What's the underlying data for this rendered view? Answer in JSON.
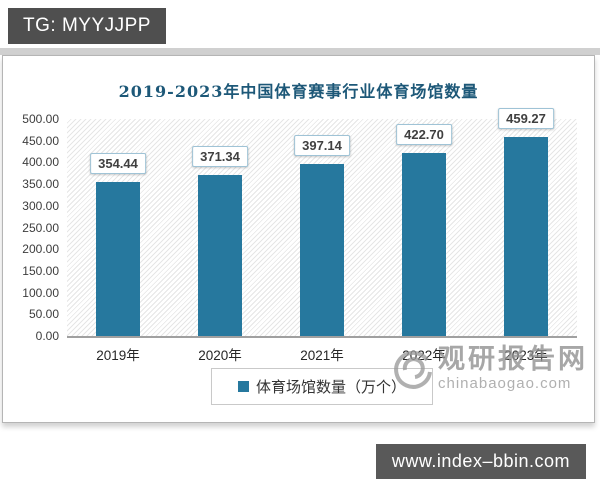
{
  "tg_badge": {
    "label": "TG: MYYJJPP"
  },
  "site_badge": {
    "label": "www.index–bbin.com"
  },
  "watermark": {
    "name": "观研报告网",
    "url": "chinabaogao.com"
  },
  "colors": {
    "bar": "#26789E",
    "title": "#1D5878",
    "badge_bg": "#4F4F4F",
    "label_box_border": "#9FC3D6",
    "watermark_gray": "#8F8F8F"
  },
  "chart_data": {
    "type": "bar",
    "title": "2019-2023年中国体育赛事行业体育场馆数量",
    "categories": [
      "2019年",
      "2020年",
      "2021年",
      "2022年",
      "2023年"
    ],
    "values": [
      354.44,
      371.34,
      397.14,
      422.7,
      459.27
    ],
    "value_labels": [
      "354.44",
      "371.34",
      "397.14",
      "422.70",
      "459.27"
    ],
    "legend": "体育场馆数量（万个）",
    "legend_position": "bottom",
    "xlabel": "",
    "ylabel": "",
    "ylim": [
      0,
      500
    ],
    "ytick_step": 50,
    "ytick_labels": [
      "500.00",
      "450.00",
      "400.00",
      "350.00",
      "300.00",
      "250.00",
      "200.00",
      "150.00",
      "100.00",
      "50.00",
      "0.00"
    ],
    "grid": false,
    "plot_background": "diagonal-hatch"
  }
}
